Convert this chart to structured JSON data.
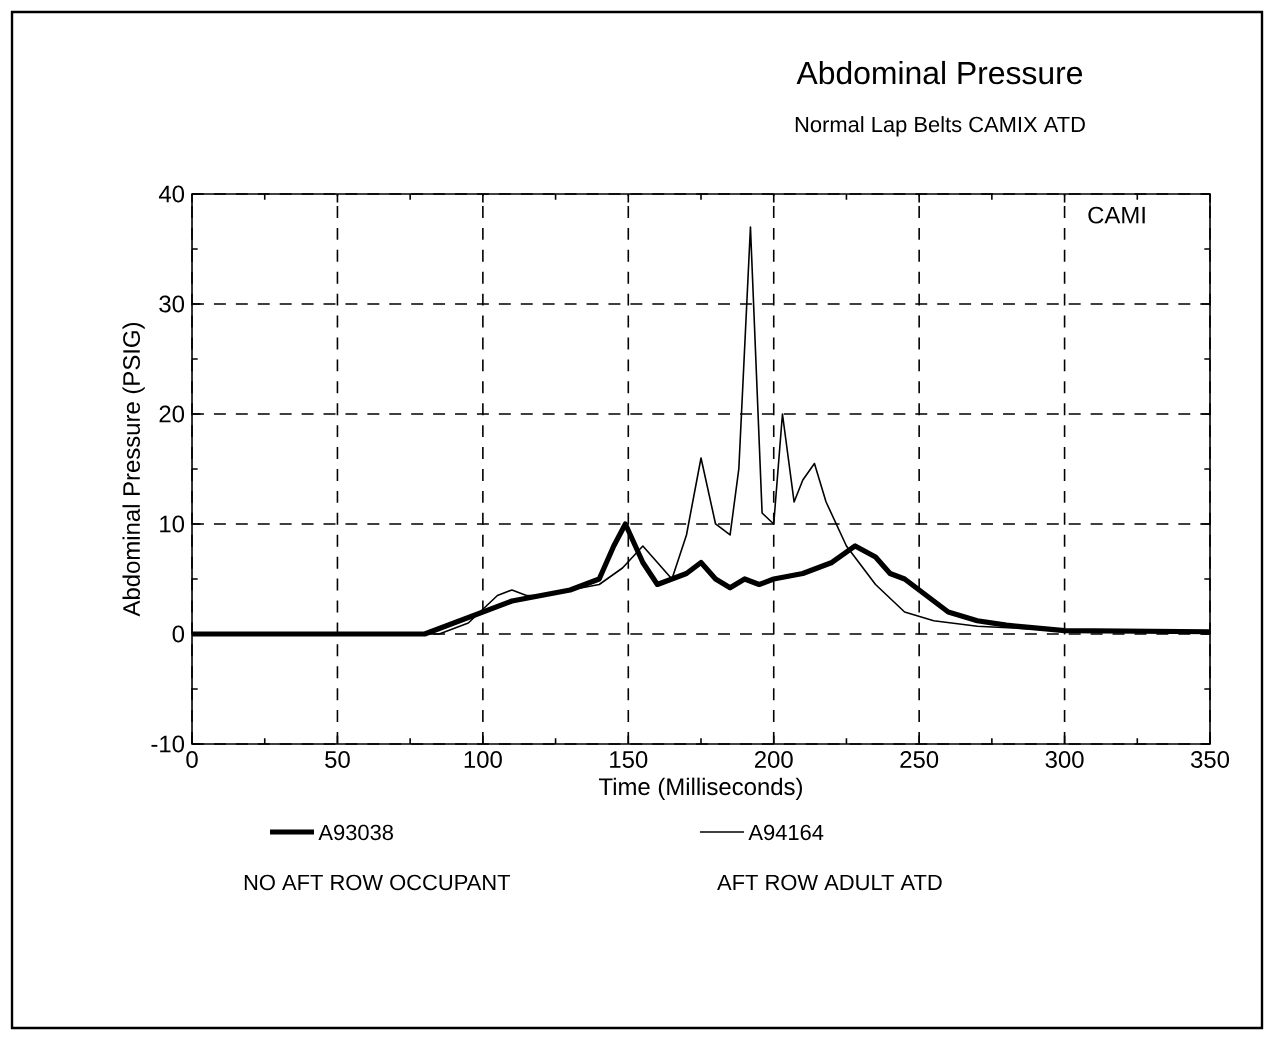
{
  "chart_data": {
    "type": "line",
    "title": "Abdominal Pressure",
    "subtitle": "Normal Lap Belts CAMIX ATD",
    "xlabel": "Time (Milliseconds)",
    "ylabel": "Abdominal Pressure (PSIG)",
    "xlim": [
      0,
      350
    ],
    "xticks": [
      0,
      50,
      100,
      150,
      200,
      250,
      300,
      350
    ],
    "ylim": [
      -10,
      40
    ],
    "yticks": [
      -10,
      0,
      10,
      20,
      30,
      40
    ],
    "grid": true,
    "legend": "bottom",
    "marker": "none",
    "line_style": "solid",
    "annotations": [
      "CAMI",
      "NO AFT ROW OCCUPANT",
      "AFT ROW ADULT ATD"
    ],
    "series": [
      {
        "name": "A93038",
        "color": "#000000",
        "x": [
          0,
          40,
          80,
          90,
          100,
          110,
          120,
          130,
          140,
          145,
          149,
          155,
          160,
          165,
          170,
          175,
          180,
          185,
          190,
          195,
          200,
          210,
          220,
          228,
          235,
          240,
          245,
          250,
          260,
          270,
          280,
          300,
          350
        ],
        "values": [
          0,
          0,
          0,
          1,
          2,
          3,
          3.5,
          4,
          5,
          8,
          10,
          6.5,
          4.5,
          5,
          5.5,
          6.5,
          5,
          4.2,
          5,
          4.5,
          5,
          5.5,
          6.5,
          8,
          7,
          5.5,
          5,
          4,
          2,
          1.2,
          0.8,
          0.3,
          0.2
        ]
      },
      {
        "name": "A94164",
        "color": "#000000",
        "x": [
          0,
          40,
          85,
          95,
          105,
          110,
          115,
          120,
          130,
          140,
          148,
          155,
          160,
          165,
          170,
          175,
          180,
          185,
          188,
          192,
          196,
          200,
          203,
          207,
          210,
          214,
          218,
          225,
          235,
          245,
          255,
          270,
          300,
          350
        ],
        "values": [
          0,
          0,
          0,
          1,
          3.5,
          4,
          3.5,
          3.5,
          4,
          4.5,
          6,
          8,
          6.5,
          5,
          9,
          16,
          10,
          9,
          15,
          37,
          11,
          10,
          20,
          12,
          14,
          15.5,
          12,
          8,
          4.5,
          2,
          1.2,
          0.7,
          0.3,
          0.2
        ]
      }
    ]
  }
}
